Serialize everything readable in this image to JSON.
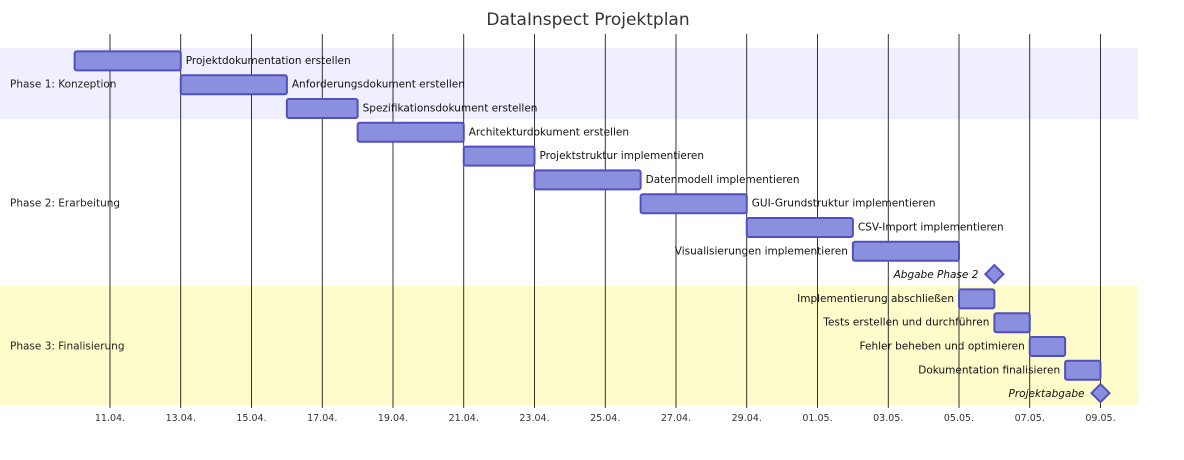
{
  "title": "DataInspect Projektplan",
  "chart_data": {
    "type": "gantt",
    "title": "DataInspect Projektplan",
    "x_axis": {
      "start": "2025-04-08",
      "end": "2025-05-10",
      "ticks": [
        {
          "date": "2025-04-11",
          "label": "11.04."
        },
        {
          "date": "2025-04-13",
          "label": "13.04."
        },
        {
          "date": "2025-04-15",
          "label": "15.04."
        },
        {
          "date": "2025-04-17",
          "label": "17.04."
        },
        {
          "date": "2025-04-19",
          "label": "19.04."
        },
        {
          "date": "2025-04-21",
          "label": "21.04."
        },
        {
          "date": "2025-04-23",
          "label": "23.04."
        },
        {
          "date": "2025-04-25",
          "label": "25.04."
        },
        {
          "date": "2025-04-27",
          "label": "27.04."
        },
        {
          "date": "2025-04-29",
          "label": "29.04."
        },
        {
          "date": "2025-05-01",
          "label": "01.05."
        },
        {
          "date": "2025-05-03",
          "label": "03.05."
        },
        {
          "date": "2025-05-05",
          "label": "05.05."
        },
        {
          "date": "2025-05-07",
          "label": "07.05."
        },
        {
          "date": "2025-05-09",
          "label": "09.05."
        }
      ]
    },
    "sections": [
      {
        "name": "Phase 1: Konzeption",
        "color": "#efefff",
        "tasks": [
          {
            "name": "Projektdokumentation erstellen",
            "start": "2025-04-10",
            "end": "2025-04-13"
          },
          {
            "name": "Anforderungsdokument erstellen",
            "start": "2025-04-13",
            "end": "2025-04-16"
          },
          {
            "name": "Spezifikationsdokument erstellen",
            "start": "2025-04-16",
            "end": "2025-04-18"
          }
        ]
      },
      {
        "name": "Phase 2: Erarbeitung",
        "color": "#ffffff",
        "tasks": [
          {
            "name": "Architekturdokument erstellen",
            "start": "2025-04-18",
            "end": "2025-04-21"
          },
          {
            "name": "Projektstruktur implementieren",
            "start": "2025-04-21",
            "end": "2025-04-23"
          },
          {
            "name": "Datenmodell implementieren",
            "start": "2025-04-23",
            "end": "2025-04-26"
          },
          {
            "name": "GUI-Grundstruktur implementieren",
            "start": "2025-04-26",
            "end": "2025-04-29"
          },
          {
            "name": "CSV-Import implementieren",
            "start": "2025-04-29",
            "end": "2025-05-02"
          },
          {
            "name": "Visualisierungen implementieren",
            "start": "2025-05-02",
            "end": "2025-05-05"
          },
          {
            "name": "Abgabe Phase 2",
            "milestone": true,
            "date": "2025-05-06"
          }
        ]
      },
      {
        "name": "Phase 3: Finalisierung",
        "color": "#fffccc",
        "tasks": [
          {
            "name": "Implementierung abschließen",
            "start": "2025-05-05",
            "end": "2025-05-06"
          },
          {
            "name": "Tests erstellen und durchführen",
            "start": "2025-05-06",
            "end": "2025-05-07"
          },
          {
            "name": "Fehler beheben und optimieren",
            "start": "2025-05-07",
            "end": "2025-05-08"
          },
          {
            "name": "Dokumentation finalisieren",
            "start": "2025-05-08",
            "end": "2025-05-09"
          },
          {
            "name": "Projektabgabe",
            "milestone": true,
            "date": "2025-05-09"
          }
        ]
      }
    ]
  }
}
